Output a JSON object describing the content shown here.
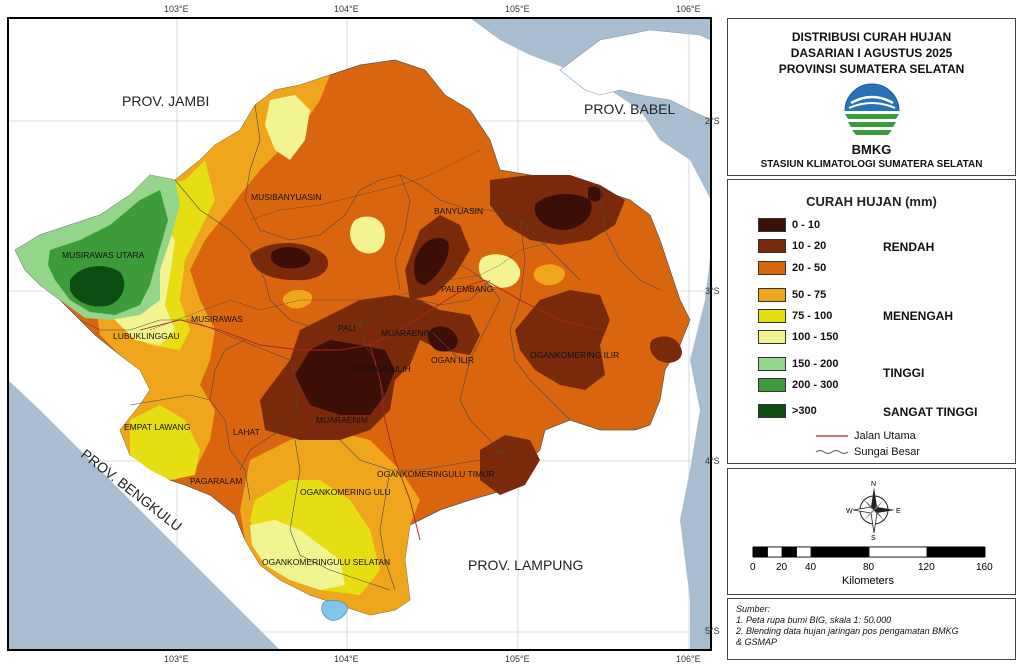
{
  "map": {
    "lon_ticks": [
      "103°E",
      "104°E",
      "105°E",
      "106°E"
    ],
    "lat_ticks": [
      "2°S",
      "3°S",
      "4°S",
      "5°S"
    ],
    "provinces": [
      "PROV. JAMBI",
      "PROV. BABEL",
      "PROV. BENGKULU",
      "PROV. LAMPUNG"
    ],
    "regions": [
      "MUSIRAWAS UTARA",
      "MUSIBANYUASIN",
      "BANYUASIN",
      "PALEMBANG",
      "MUSIRAWAS",
      "LUBUKLINGGAU",
      "PALI",
      "MUARAENIM",
      "OGAN ILIR",
      "PRABUMULIH",
      "OGANKOMERING ILIR",
      "EMPAT LAWANG",
      "LAHAT",
      "MUARAENIM",
      "PAGARALAM",
      "OGANKOMERINGULU TIMUR",
      "OGANKOMERING ULU",
      "OGANKOMERINGULU SELATAN"
    ]
  },
  "title": {
    "line1": "DISTRIBUSI CURAH HUJAN",
    "line2": "DASARIAN I AGUSTUS 2025",
    "line3": "PROVINSI SUMATERA SELATAN",
    "agency": "BMKG",
    "station": "STASIUN KLIMATOLOGI SUMATERA SELATAN"
  },
  "legend": {
    "title": "CURAH HUJAN (mm)",
    "classes": [
      {
        "label": "0 - 10",
        "color": "#3b0f05"
      },
      {
        "label": "10 - 20",
        "color": "#7a2a0a"
      },
      {
        "label": "20 - 50",
        "color": "#d9650f"
      },
      {
        "label": "50 - 75",
        "color": "#efa51c"
      },
      {
        "label": "75 - 100",
        "color": "#e6de12"
      },
      {
        "label": "100 - 150",
        "color": "#f2f58f"
      },
      {
        "label": "150 - 200",
        "color": "#93d58a"
      },
      {
        "label": "200 - 300",
        "color": "#3e9b3c"
      },
      {
        "label": ">300",
        "color": "#0d4d14"
      }
    ],
    "categories": [
      "RENDAH",
      "MENENGAH",
      "TINGGI",
      "SANGAT TINGGI"
    ],
    "lines": [
      {
        "label": "Jalan Utama",
        "color": "#b02020"
      },
      {
        "label": "Sungai Besar",
        "color": "#555555"
      }
    ]
  },
  "compass": {
    "n": "N",
    "s": "S",
    "e": "E",
    "w": "W"
  },
  "scale": {
    "ticks": [
      "0",
      "20",
      "40",
      "80",
      "120",
      "160"
    ],
    "unit": "Kilometers"
  },
  "source": {
    "heading": "Sumber:",
    "line1": "1. Peta rupa bumi BIG, skala 1: 50.000",
    "line2": "2. Blending data hujan jaringan pos pengamatan BMKG",
    "line3": " & GSMAP"
  }
}
